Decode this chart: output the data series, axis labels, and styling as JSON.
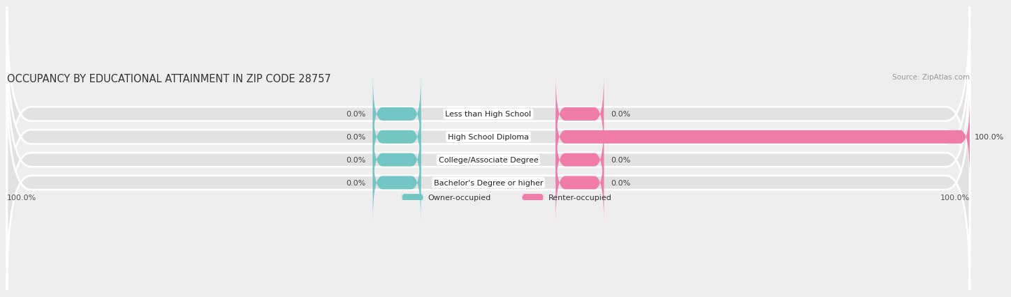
{
  "title": "OCCUPANCY BY EDUCATIONAL ATTAINMENT IN ZIP CODE 28757",
  "source": "Source: ZipAtlas.com",
  "categories": [
    "Less than High School",
    "High School Diploma",
    "College/Associate Degree",
    "Bachelor's Degree or higher"
  ],
  "owner_values": [
    0.0,
    0.0,
    0.0,
    0.0
  ],
  "renter_values": [
    0.0,
    100.0,
    0.0,
    0.0
  ],
  "owner_color": "#74C6C5",
  "renter_color": "#F07CA8",
  "background_color": "#eeeeee",
  "bar_bg_color": "#e2e2e2",
  "bar_height": 0.62,
  "owner_label": "Owner-occupied",
  "renter_label": "Renter-occupied",
  "left_footer_label": "100.0%",
  "right_footer_label": "100.0%",
  "title_fontsize": 10.5,
  "source_fontsize": 7.5,
  "value_fontsize": 8,
  "cat_fontsize": 8,
  "legend_fontsize": 8
}
